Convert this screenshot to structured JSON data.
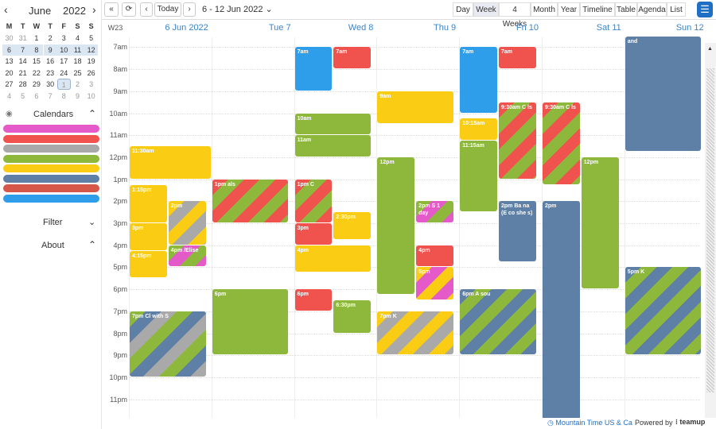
{
  "sidebar": {
    "month": "June",
    "year": "2022",
    "weekdays": [
      "M",
      "T",
      "W",
      "T",
      "F",
      "S",
      "S"
    ],
    "weeks": [
      [
        "30",
        "31",
        "1",
        "2",
        "3",
        "4",
        "5"
      ],
      [
        "6",
        "7",
        "8",
        "9",
        "10",
        "11",
        "12"
      ],
      [
        "13",
        "14",
        "15",
        "16",
        "17",
        "18",
        "19"
      ],
      [
        "20",
        "21",
        "22",
        "23",
        "24",
        "25",
        "26"
      ],
      [
        "27",
        "28",
        "29",
        "30",
        "1",
        "2",
        "3"
      ],
      [
        "4",
        "5",
        "6",
        "7",
        "8",
        "9",
        "10"
      ]
    ],
    "calendars_label": "Calendars",
    "calendar_colors": [
      "#e55ac9",
      "#f0524e",
      "#a9a9a9",
      "#8db83c",
      "#fbcc14",
      "#5e7fa6",
      "#d4574a",
      "#2f9eea"
    ],
    "filter_label": "Filter",
    "about_label": "About"
  },
  "toolbar": {
    "today_label": "Today",
    "range_label": "6 - 12 Jun 2022",
    "views": [
      "Day",
      "Week",
      "4 Weeks",
      "Month",
      "Year",
      "Timeline",
      "Table",
      "Agenda",
      "List"
    ],
    "active_view": "Week"
  },
  "grid": {
    "week_label": "W23",
    "days": [
      "6 Jun 2022",
      "Tue 7",
      "Wed 8",
      "Thu 9",
      "Fri 10",
      "Sat 11",
      "Sun 12"
    ],
    "hours": [
      "7am",
      "8am",
      "9am",
      "10am",
      "11am",
      "12pm",
      "1pm",
      "2pm",
      "3pm",
      "4pm",
      "5pm",
      "6pm",
      "7pm",
      "8pm",
      "9pm",
      "10pm",
      "11pm"
    ],
    "events": [
      {
        "day": 0,
        "start": 11.5,
        "end": 13,
        "left": 0,
        "width": 1,
        "color": "#fbcc14",
        "label": "11:30am"
      },
      {
        "day": 0,
        "start": 13.25,
        "end": 15,
        "left": 0,
        "width": 0.47,
        "color": "#fbcc14",
        "label": "1:15pm"
      },
      {
        "day": 0,
        "start": 15,
        "end": 16.25,
        "left": 0,
        "width": 0.47,
        "color": "#fbcc14",
        "label": "3pm"
      },
      {
        "day": 0,
        "start": 16.25,
        "end": 17.5,
        "left": 0,
        "width": 0.47,
        "color": "#fbcc14",
        "label": "4:15pm"
      },
      {
        "day": 0,
        "start": 14,
        "end": 16,
        "left": 0.47,
        "width": 0.47,
        "stripes": [
          "#fbcc14",
          "#a9a9a9"
        ],
        "label": "2pm"
      },
      {
        "day": 0,
        "start": 16,
        "end": 17,
        "left": 0.47,
        "width": 0.47,
        "stripes": [
          "#8db83c",
          "#e55ac9"
        ],
        "label": "4pm  /Elise"
      },
      {
        "day": 0,
        "start": 19,
        "end": 22,
        "left": 0,
        "width": 0.94,
        "stripes": [
          "#8db83c",
          "#5e7fa6",
          "#a9a9a9"
        ],
        "label": "7pm Cl  with S"
      },
      {
        "day": 1,
        "start": 13,
        "end": 15,
        "left": 0,
        "width": 0.94,
        "stripes": [
          "#f0524e",
          "#8db83c"
        ],
        "label": "1pm  als"
      },
      {
        "day": 1,
        "start": 18,
        "end": 21,
        "left": 0,
        "width": 0.94,
        "color": "#8db83c",
        "label": "6pm"
      },
      {
        "day": 2,
        "start": 7,
        "end": 9,
        "left": 0,
        "width": 0.47,
        "color": "#2f9eea",
        "label": "7am"
      },
      {
        "day": 2,
        "start": 7,
        "end": 8,
        "left": 0.47,
        "width": 0.47,
        "color": "#f0524e",
        "label": "7am"
      },
      {
        "day": 2,
        "start": 10,
        "end": 11,
        "left": 0,
        "width": 0.94,
        "color": "#8db83c",
        "label": "10am"
      },
      {
        "day": 2,
        "start": 11,
        "end": 12,
        "left": 0,
        "width": 0.94,
        "color": "#8db83c",
        "label": "11am"
      },
      {
        "day": 2,
        "start": 13,
        "end": 15,
        "left": 0,
        "width": 0.47,
        "stripes": [
          "#f0524e",
          "#8db83c"
        ],
        "label": "1pm C"
      },
      {
        "day": 2,
        "start": 14.5,
        "end": 15.75,
        "left": 0.47,
        "width": 0.47,
        "color": "#fbcc14",
        "label": "2:30pm"
      },
      {
        "day": 2,
        "start": 15,
        "end": 16,
        "left": 0,
        "width": 0.47,
        "color": "#f0524e",
        "label": "3pm"
      },
      {
        "day": 2,
        "start": 16,
        "end": 17.25,
        "left": 0,
        "width": 0.94,
        "color": "#fbcc14",
        "label": "4pm"
      },
      {
        "day": 2,
        "start": 18,
        "end": 19,
        "left": 0,
        "width": 0.47,
        "color": "#f0524e",
        "label": "6pm"
      },
      {
        "day": 2,
        "start": 18.5,
        "end": 20,
        "left": 0.47,
        "width": 0.47,
        "color": "#8db83c",
        "label": "6:30pm"
      },
      {
        "day": 3,
        "start": 9,
        "end": 10.5,
        "left": 0,
        "width": 0.94,
        "color": "#fbcc14",
        "label": "9am"
      },
      {
        "day": 3,
        "start": 12,
        "end": 18.25,
        "left": 0,
        "width": 0.47,
        "color": "#8db83c",
        "label": "12pm"
      },
      {
        "day": 3,
        "start": 14,
        "end": 15,
        "left": 0.47,
        "width": 0.47,
        "stripes": [
          "#8db83c",
          "#e55ac9"
        ],
        "label": "2pm S  1 day"
      },
      {
        "day": 3,
        "start": 16,
        "end": 17,
        "left": 0.47,
        "width": 0.47,
        "color": "#f0524e",
        "label": "4pm"
      },
      {
        "day": 3,
        "start": 17,
        "end": 18.5,
        "left": 0.47,
        "width": 0.47,
        "stripes": [
          "#fbcc14",
          "#e55ac9"
        ],
        "label": "5pm"
      },
      {
        "day": 3,
        "start": 19,
        "end": 21,
        "left": 0,
        "width": 0.94,
        "stripes": [
          "#fbcc14",
          "#a9a9a9"
        ],
        "label": "7pm K"
      },
      {
        "day": 4,
        "start": 7,
        "end": 10,
        "left": 0,
        "width": 0.47,
        "color": "#2f9eea",
        "label": "7am"
      },
      {
        "day": 4,
        "start": 7,
        "end": 8,
        "left": 0.47,
        "width": 0.47,
        "color": "#f0524e",
        "label": "7am"
      },
      {
        "day": 4,
        "start": 9.5,
        "end": 13,
        "left": 0.47,
        "width": 0.47,
        "stripes": [
          "#f0524e",
          "#8db83c"
        ],
        "label": "9:30am C  ls"
      },
      {
        "day": 4,
        "start": 10.25,
        "end": 11.25,
        "left": 0,
        "width": 0.47,
        "color": "#fbcc14",
        "label": "10:15am"
      },
      {
        "day": 4,
        "start": 11.25,
        "end": 14.5,
        "left": 0,
        "width": 0.47,
        "color": "#8db83c",
        "label": "11:15am"
      },
      {
        "day": 4,
        "start": 14,
        "end": 16.75,
        "left": 0.47,
        "width": 0.47,
        "color": "#5e7fa6",
        "label": "2pm Ba na (E co she s)"
      },
      {
        "day": 4,
        "start": 18,
        "end": 21,
        "left": 0,
        "width": 0.94,
        "stripes": [
          "#5e7fa6",
          "#8db83c"
        ],
        "label": "6pm A  sou"
      },
      {
        "day": 5,
        "start": 9.5,
        "end": 13.25,
        "left": 0,
        "width": 0.47,
        "stripes": [
          "#f0524e",
          "#8db83c"
        ],
        "label": "9:30am C  ls"
      },
      {
        "day": 5,
        "start": 12,
        "end": 18,
        "left": 0.47,
        "width": 0.47,
        "color": "#8db83c",
        "label": "12pm"
      },
      {
        "day": 5,
        "start": 14,
        "end": 24,
        "left": 0,
        "width": 0.47,
        "color": "#5e7fa6",
        "label": "2pm"
      },
      {
        "day": 6,
        "start": 6.5,
        "end": 11.75,
        "left": 0,
        "width": 0.94,
        "color": "#5e7fa6",
        "label": "and"
      },
      {
        "day": 6,
        "start": 17,
        "end": 21,
        "left": 0,
        "width": 0.94,
        "stripes": [
          "#5e7fa6",
          "#8db83c"
        ],
        "label": "5pm K"
      }
    ]
  },
  "footer": {
    "timezone": "Mountain Time US & Ca",
    "powered": "Powered by",
    "brand": "teamup"
  }
}
